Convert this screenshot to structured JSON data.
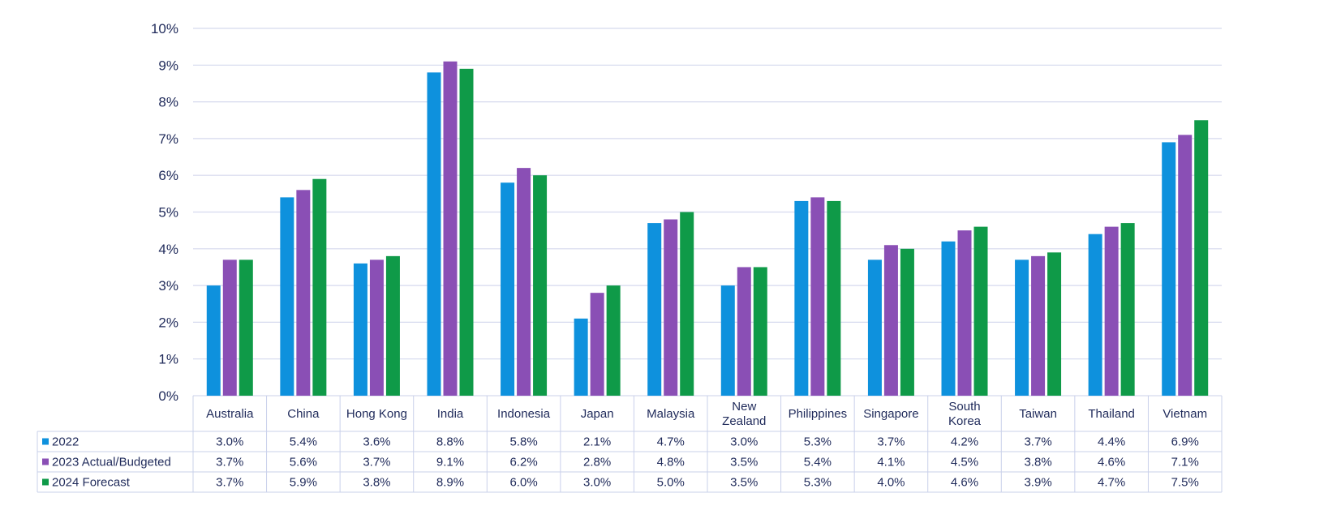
{
  "chart_data": {
    "type": "bar",
    "title": "",
    "xlabel": "",
    "ylabel": "",
    "ylim": [
      0,
      10
    ],
    "ytick_suffix": "%",
    "grid": true,
    "legend_placement": "data table rows below chart",
    "categories": [
      [
        "Australia"
      ],
      [
        "China"
      ],
      [
        "Hong Kong"
      ],
      [
        "India"
      ],
      [
        "Indonesia"
      ],
      [
        "Japan"
      ],
      [
        "Malaysia"
      ],
      [
        "New",
        "Zealand"
      ],
      [
        "Philippines"
      ],
      [
        "Singapore"
      ],
      [
        "South",
        "Korea"
      ],
      [
        "Taiwan"
      ],
      [
        "Thailand"
      ],
      [
        "Vietnam"
      ]
    ],
    "series": [
      {
        "name": "2022",
        "color": "#0e91dd",
        "values": [
          3.0,
          5.4,
          3.6,
          8.8,
          5.8,
          2.1,
          4.7,
          3.0,
          5.3,
          3.7,
          4.2,
          3.7,
          4.4,
          6.9
        ]
      },
      {
        "name": "2023 Actual/Budgeted",
        "color": "#8a4fb5",
        "values": [
          3.7,
          5.6,
          3.7,
          9.1,
          6.2,
          2.8,
          4.8,
          3.5,
          5.4,
          4.1,
          4.5,
          3.8,
          4.6,
          7.1
        ]
      },
      {
        "name": "2024 Forecast",
        "color": "#0f9a48",
        "values": [
          3.7,
          5.9,
          3.8,
          8.9,
          6.0,
          3.0,
          5.0,
          3.5,
          5.3,
          4.0,
          4.6,
          3.9,
          4.7,
          7.5
        ]
      }
    ],
    "table_values": [
      [
        "3.0%",
        "5.4%",
        "3.6%",
        "8.8%",
        "5.8%",
        "2.1%",
        "4.7%",
        "3.0%",
        "5.3%",
        "3.7%",
        "4.2%",
        "3.7%",
        "4.4%",
        "6.9%"
      ],
      [
        "3.7%",
        "5.6%",
        "3.7%",
        "9.1%",
        "6.2%",
        "2.8%",
        "4.8%",
        "3.5%",
        "5.4%",
        "4.1%",
        "4.5%",
        "3.8%",
        "4.6%",
        "7.1%"
      ],
      [
        "3.7%",
        "5.9%",
        "3.8%",
        "8.9%",
        "6.0%",
        "3.0%",
        "5.0%",
        "3.5%",
        "5.3%",
        "4.0%",
        "4.6%",
        "3.9%",
        "4.7%",
        "7.5%"
      ]
    ]
  }
}
